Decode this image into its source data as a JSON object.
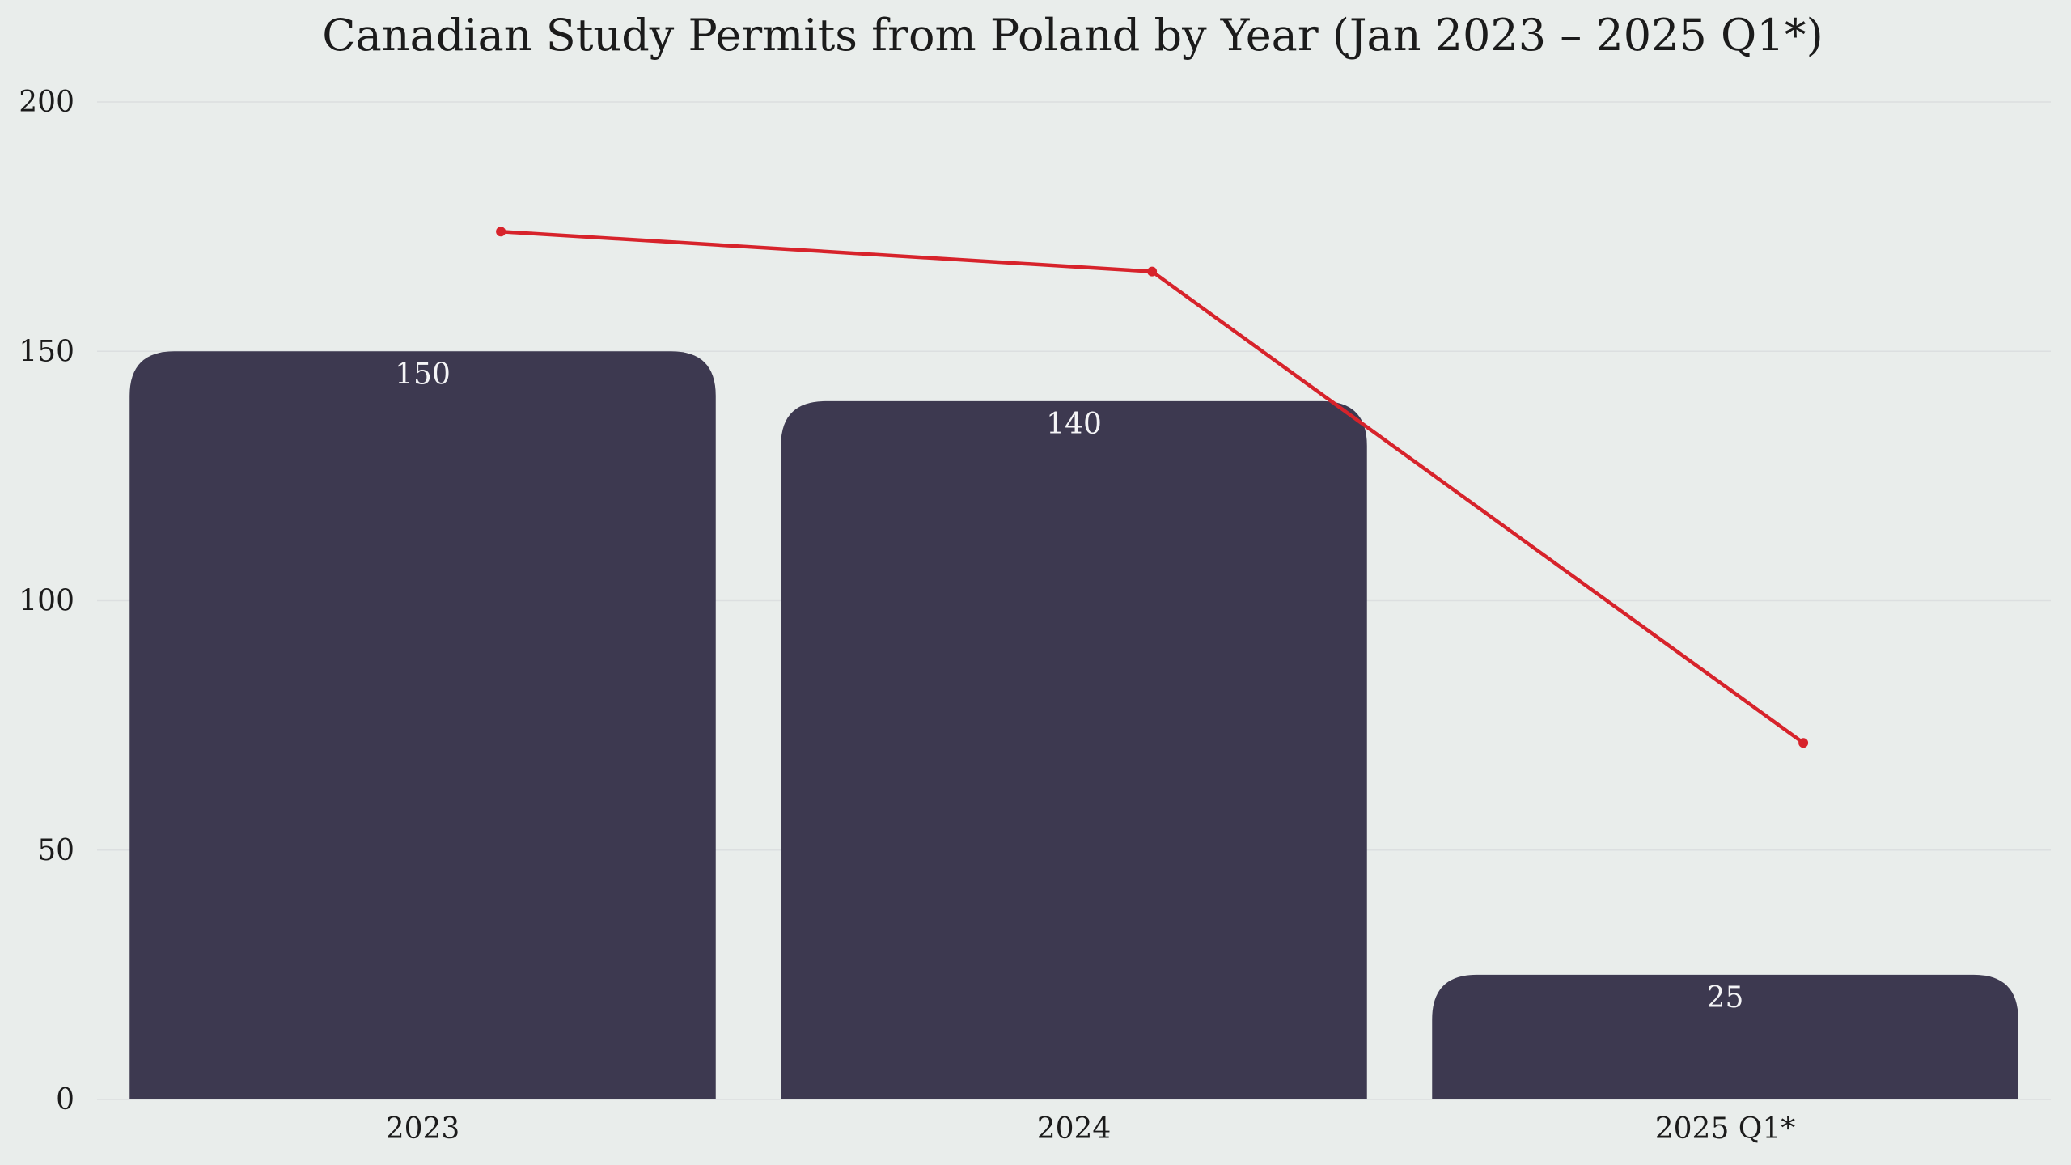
{
  "chart_data": {
    "type": "bar",
    "title": "Canadian Study Permits from Poland by Year (Jan 2023 – 2025 Q1*)",
    "xlabel": "",
    "ylabel": "",
    "categories": [
      "2023",
      "2024",
      "2025 Q1*"
    ],
    "series": [
      {
        "type": "bar",
        "values": [
          150,
          140,
          25
        ],
        "color": "#3d3950"
      },
      {
        "type": "line",
        "values": [
          174,
          166,
          71.5
        ],
        "color": "#d7232b"
      }
    ],
    "data_labels": [
      "150",
      "140",
      "25"
    ],
    "ylim": [
      0,
      200
    ],
    "y_ticks": [
      0,
      50,
      100,
      150,
      200
    ],
    "grid": true,
    "legend": "none"
  },
  "colors": {
    "background": "#e9edeb",
    "bar": "#3d3950",
    "line": "#d7232b",
    "grid": "#dcdfe0",
    "text": "#1b1b1b",
    "bar_label": "#f4f4f6"
  }
}
